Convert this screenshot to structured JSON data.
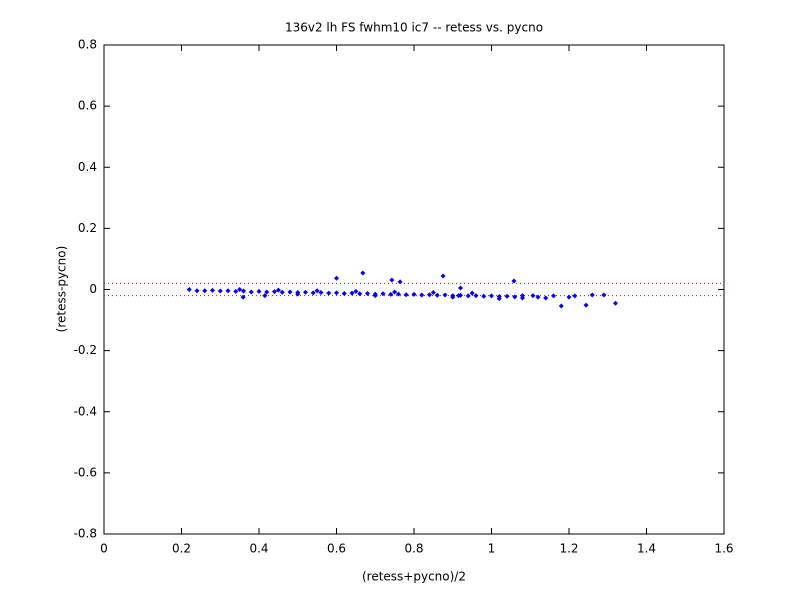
{
  "chart_data": {
    "type": "scatter",
    "title": "136v2 lh FS fwhm10 ic7 -- retess vs. pycno",
    "xlabel": "(retess+pycno)/2",
    "ylabel": "(retess-pycno)",
    "color": "#0000ff",
    "x": [
      0.22,
      0.24,
      0.26,
      0.28,
      0.3,
      0.32,
      0.34,
      0.36,
      0.38,
      0.4,
      0.42,
      0.44,
      0.46,
      0.48,
      0.5,
      0.52,
      0.54,
      0.56,
      0.58,
      0.6,
      0.62,
      0.64,
      0.66,
      0.68,
      0.7,
      0.72,
      0.74,
      0.76,
      0.78,
      0.8,
      0.82,
      0.84,
      0.86,
      0.88,
      0.9,
      0.92,
      0.94,
      0.96,
      0.98,
      1.0,
      1.02,
      1.04,
      1.06,
      1.08,
      0.35,
      0.45,
      0.55,
      0.65,
      0.75,
      0.85,
      0.95,
      0.5,
      0.7,
      0.9,
      1.02,
      0.6,
      0.668,
      0.743,
      0.764,
      0.875,
      1.058,
      0.359,
      0.415,
      0.92,
      0.915,
      1.08,
      1.107,
      1.12,
      1.14,
      1.16,
      1.18,
      1.2,
      1.215,
      1.244,
      1.26,
      1.29,
      1.32
    ],
    "values": [
      0.0,
      -0.004,
      -0.004,
      -0.003,
      -0.005,
      -0.004,
      -0.006,
      -0.005,
      -0.008,
      -0.006,
      -0.008,
      -0.007,
      -0.009,
      -0.008,
      -0.01,
      -0.009,
      -0.011,
      -0.01,
      -0.012,
      -0.011,
      -0.013,
      -0.012,
      -0.014,
      -0.013,
      -0.015,
      -0.014,
      -0.016,
      -0.015,
      -0.017,
      -0.016,
      -0.018,
      -0.017,
      -0.019,
      -0.018,
      -0.02,
      -0.019,
      -0.021,
      -0.02,
      -0.022,
      -0.021,
      -0.023,
      -0.022,
      -0.024,
      -0.02,
      0.0,
      -0.002,
      -0.004,
      -0.006,
      -0.008,
      -0.01,
      -0.012,
      -0.015,
      -0.02,
      -0.025,
      -0.03,
      0.037,
      0.054,
      0.031,
      0.025,
      0.044,
      0.028,
      -0.025,
      -0.02,
      0.005,
      -0.02,
      -0.028,
      -0.02,
      -0.025,
      -0.028,
      -0.021,
      -0.054,
      -0.025,
      -0.021,
      -0.051,
      -0.018,
      -0.018,
      -0.045
    ],
    "reference_lines": {
      "values": [
        0.02,
        -0.02
      ],
      "color": "#ff0000"
    },
    "xlim": [
      0,
      1.6
    ],
    "xticks": [
      0,
      0.2,
      0.4,
      0.6,
      0.8,
      1,
      1.2,
      1.4,
      1.6
    ],
    "ylim": [
      -0.8,
      0.8
    ],
    "yticks": [
      -0.8,
      -0.6,
      -0.4,
      -0.2,
      0,
      0.2,
      0.4,
      0.6,
      0.8
    ]
  }
}
